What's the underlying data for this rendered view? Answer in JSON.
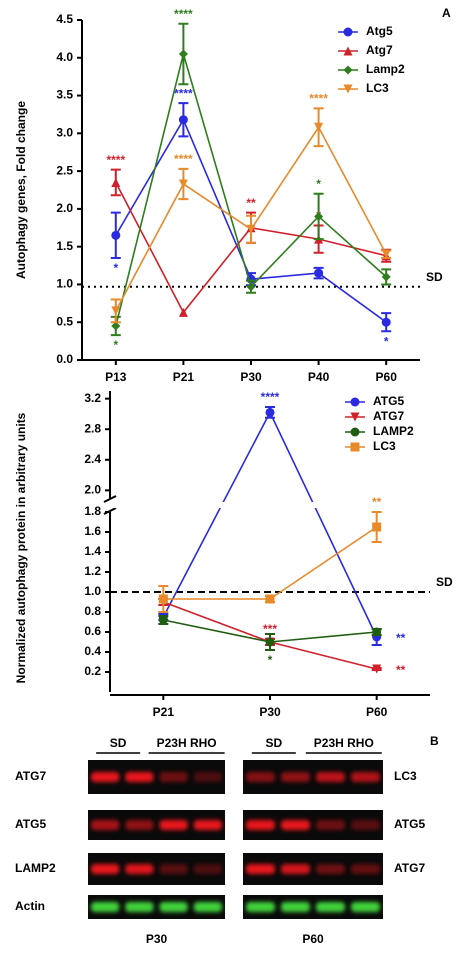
{
  "chart_data": [
    {
      "type": "line",
      "panel": "A",
      "ylabel": "Autophagy genes, Fold change",
      "categories": [
        "P13",
        "P21",
        "P30",
        "P40",
        "P60"
      ],
      "ylim": [
        0,
        4.5
      ],
      "yticks": [
        {
          "value": 0,
          "label": "0.0"
        },
        0.5,
        {
          "value": 1,
          "label": "1.0"
        },
        1.5,
        {
          "value": 2,
          "label": "2.0"
        },
        2.5,
        {
          "value": 3,
          "label": "3.0"
        },
        3.5,
        {
          "value": 4,
          "label": "4.0"
        },
        4.5
      ],
      "reference_line": {
        "value": 0.97,
        "label": "SD"
      },
      "series": [
        {
          "name": "Atg5",
          "color": "#2a2ae0",
          "marker": "circle",
          "values": [
            1.65,
            3.18,
            1.07,
            1.15,
            0.5
          ],
          "errors": [
            0.3,
            0.22,
            0.08,
            0.07,
            0.12
          ],
          "annotations": [
            "*",
            "****",
            null,
            null,
            "*"
          ]
        },
        {
          "name": "Atg7",
          "color": "#d0202a",
          "marker": "triangle-up",
          "values": [
            2.35,
            0.63,
            1.75,
            1.6,
            1.38
          ],
          "errors": [
            0.17,
            0,
            0.2,
            0.18,
            0.08
          ],
          "annotations": [
            "****",
            null,
            "**",
            "*",
            null
          ]
        },
        {
          "name": "Lamp2",
          "color": "#2e7d1e",
          "marker": "diamond",
          "values": [
            0.45,
            4.05,
            0.97,
            1.9,
            1.1
          ],
          "errors": [
            0.12,
            0.4,
            0.08,
            0.3,
            0.1
          ],
          "annotations": [
            "*",
            "****",
            null,
            "*",
            null
          ]
        },
        {
          "name": "LC3",
          "color": "#e8892a",
          "marker": "triangle-down",
          "values": [
            0.65,
            2.33,
            1.73,
            3.08,
            1.4
          ],
          "errors": [
            0.15,
            0.2,
            0.18,
            0.25,
            0.05
          ],
          "annotations": [
            null,
            "****",
            null,
            "****",
            null
          ]
        }
      ]
    },
    {
      "type": "line",
      "ylabel": "Normalized autophagy protein in arbitrary units",
      "categories": [
        "P21",
        "P30",
        "P60"
      ],
      "y_segments": [
        {
          "ylim": [
            0,
            1.8
          ],
          "yticks": [
            0.2,
            0.4,
            0.6,
            0.8,
            {
              "value": 1,
              "label": "1.0"
            },
            1.2,
            1.4,
            1.6,
            1.8
          ]
        },
        {
          "ylim": [
            1.9,
            3.3
          ],
          "yticks": [
            {
              "value": 2,
              "label": "2.0"
            },
            2.4,
            2.8,
            3.2
          ]
        }
      ],
      "reference_line": {
        "value": 1,
        "label": "SD"
      },
      "series": [
        {
          "name": "ATG5",
          "color": "#2a2ae0",
          "marker": "circle",
          "values": [
            0.75,
            3.02,
            0.55
          ],
          "errors": [
            0.03,
            0.07,
            0.08
          ],
          "annotations": [
            null,
            "****",
            "**"
          ]
        },
        {
          "name": "ATG7",
          "color": "#d0202a",
          "marker": "triangle-down",
          "values": [
            0.9,
            0.5,
            0.23
          ],
          "errors": [
            0.03,
            0.03,
            0.01
          ],
          "annotations": [
            null,
            "***",
            "**"
          ]
        },
        {
          "name": "LAMP2",
          "color": "#1f5e12",
          "marker": "circle",
          "values": [
            0.72,
            0.5,
            0.6
          ],
          "errors": [
            0.04,
            0.08,
            0.03
          ],
          "annotations": [
            null,
            "*",
            null
          ]
        },
        {
          "name": "LC3",
          "color": "#e8892a",
          "marker": "square",
          "values": [
            0.93,
            0.93,
            1.65
          ],
          "errors": [
            0.13,
            0.03,
            0.15
          ],
          "annotations": [
            null,
            null,
            "**"
          ]
        }
      ]
    }
  ],
  "blots": {
    "panel": "B",
    "left": {
      "groups": [
        "SD",
        "P23H RHO"
      ],
      "rows": [
        "ATG7",
        "ATG5",
        "LAMP2",
        "Actin"
      ],
      "label": "P30"
    },
    "right": {
      "groups": [
        "SD",
        "P23H RHO"
      ],
      "rows": [
        "LC3",
        "ATG5",
        "ATG7"
      ],
      "label": "P60"
    }
  }
}
